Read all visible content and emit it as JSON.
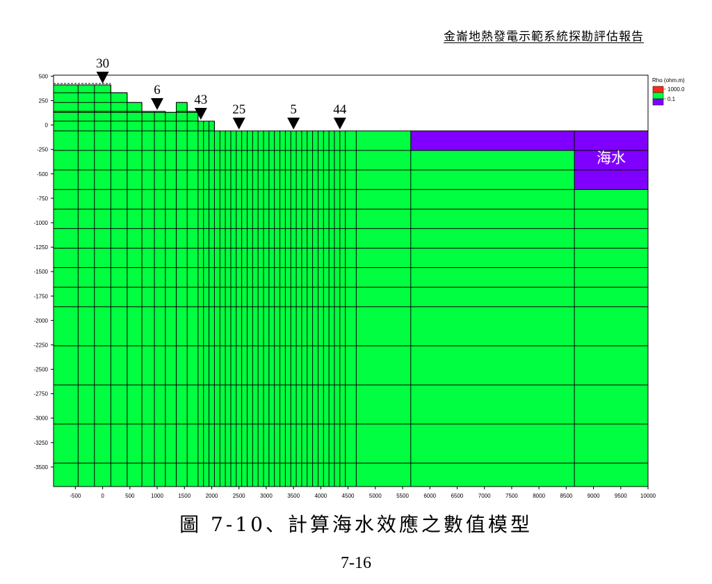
{
  "header": {
    "title": "金崙地熱發電示範系統探勘評估報告"
  },
  "caption": "圖  7-10、計算海水效應之數值模型",
  "page_number": "7-16",
  "chart_data": {
    "type": "heatmap",
    "title": "",
    "xlabel": "",
    "ylabel": "",
    "xlim": [
      -900,
      10000
    ],
    "ylim": [
      -3700,
      510
    ],
    "x_ticks": [
      -500,
      0,
      500,
      1000,
      1500,
      2000,
      2500,
      3000,
      3500,
      4000,
      4500,
      5000,
      5500,
      6000,
      6500,
      7000,
      7500,
      8000,
      8500,
      9000,
      9500,
      10000
    ],
    "y_ticks": [
      500,
      250,
      0,
      -250,
      -500,
      -750,
      -1000,
      -1250,
      -1500,
      -1750,
      -2000,
      -2250,
      -2500,
      -2750,
      -3000,
      -3250,
      -3500
    ],
    "grid_x_lines": [
      -450,
      -150,
      150,
      450,
      720,
      950,
      1150,
      1350,
      1550,
      1750,
      1850,
      1950,
      2050,
      2150,
      2250,
      2350,
      2450,
      2550,
      2650,
      2750,
      2850,
      2950,
      3050,
      3150,
      3250,
      3350,
      3450,
      3550,
      3650,
      3750,
      3850,
      3950,
      4050,
      4150,
      4250,
      4350,
      4450,
      4650,
      5650,
      8650
    ],
    "grid_y_lines": [
      -60,
      -260,
      -460,
      -660,
      -860,
      -1060,
      -1260,
      -1460,
      -1660,
      -1860,
      -2260,
      -2660,
      -3060,
      -3460
    ],
    "surface_steps": [
      {
        "from": -900,
        "to": 150,
        "top": 410
      },
      {
        "from": 150,
        "to": 450,
        "top": 330
      },
      {
        "from": 450,
        "to": 720,
        "top": 230
      },
      {
        "from": 720,
        "to": 1150,
        "top": 140
      },
      {
        "from": 1150,
        "to": 1350,
        "top": 130
      },
      {
        "from": 1350,
        "to": 1550,
        "top": 230
      },
      {
        "from": 1550,
        "to": 1750,
        "top": 140
      },
      {
        "from": 1750,
        "to": 2050,
        "top": 40
      },
      {
        "from": 2050,
        "to": 10000,
        "top": -60
      }
    ],
    "seawater_blocks": [
      {
        "from": 5650,
        "to": 8650,
        "top": -60,
        "bottom": -260
      },
      {
        "from": 8650,
        "to": 10000,
        "top": -60,
        "bottom": -660
      }
    ],
    "seawater_label": "海水",
    "stations": [
      {
        "label": "30",
        "x": 0,
        "elevation": 410
      },
      {
        "label": "6",
        "x": 1000,
        "elevation": 140
      },
      {
        "label": "43",
        "x": 1800,
        "elevation": 40
      },
      {
        "label": "25",
        "x": 2500,
        "elevation": -60
      },
      {
        "label": "5",
        "x": 3500,
        "elevation": -60
      },
      {
        "label": "44",
        "x": 4350,
        "elevation": -60
      }
    ],
    "legend": {
      "position": "top-right",
      "title": "Rho (ohm.m)",
      "entries": [
        {
          "label": "1000.0",
          "color": "#ff2a14"
        },
        {
          "label": "",
          "color": "#00ff40"
        },
        {
          "label": "0.1",
          "color": "#8000ff"
        }
      ]
    },
    "colors": {
      "rock": "#00ff40",
      "seawater": "#8000ff",
      "grid": "#000000"
    }
  }
}
